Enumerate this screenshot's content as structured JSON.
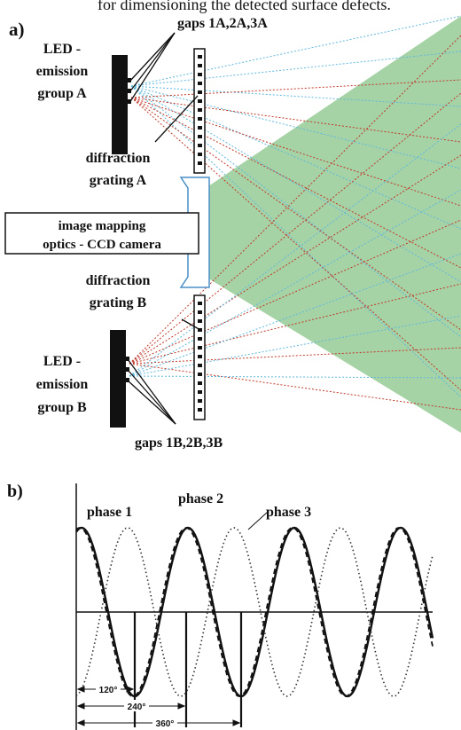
{
  "caption_fragment": "for dimensioning the detected surface defects.",
  "panel_a": {
    "panel_label": "a)",
    "gaps_a": "gaps 1A,2A,3A",
    "led_a": [
      "LED -",
      "emission",
      "group A"
    ],
    "grating_a": [
      "diffraction",
      "grating A"
    ],
    "camera": [
      "image mapping",
      "optics - CCD camera"
    ],
    "grating_b": [
      "diffraction",
      "grating B"
    ],
    "led_b": [
      "LED -",
      "emission",
      "group B"
    ],
    "gaps_b": "gaps 1B,2B,3B",
    "colors": {
      "field_of_view": "#a6d3a6",
      "beam_blue": "#5fb8dc",
      "beam_red": "#c0392b",
      "component": "#111111"
    }
  },
  "panel_b": {
    "panel_label": "b)",
    "phase_labels": [
      "phase 1",
      "phase 2",
      "phase 3"
    ],
    "phase_styles": [
      "dashed",
      "solid",
      "dotted"
    ],
    "phase_offsets_deg": [
      0,
      120,
      240
    ],
    "angle_labels": [
      "120°",
      "240°",
      "360°"
    ]
  }
}
